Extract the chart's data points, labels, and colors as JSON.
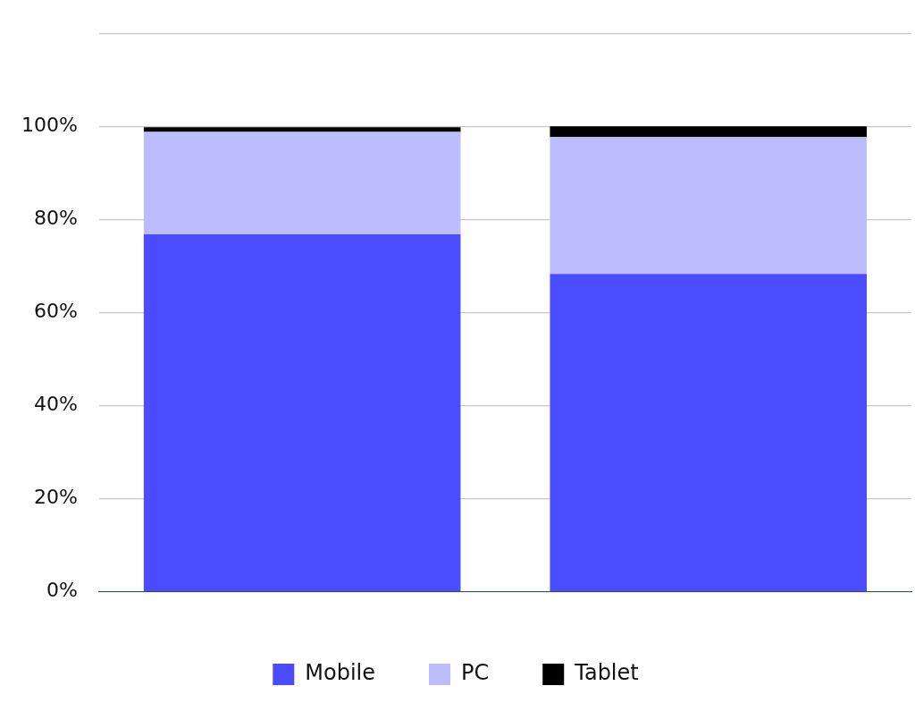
{
  "chart_data": {
    "type": "bar",
    "stacked": true,
    "categories": [
      null,
      null
    ],
    "series": [
      {
        "name": "Mobile",
        "color": "#4b4bff",
        "values": [
          76.8,
          68.3
        ]
      },
      {
        "name": "PC",
        "color": "#bbbdfe",
        "values": [
          22.0,
          29.4
        ]
      },
      {
        "name": "Tablet",
        "color": "#000000",
        "values": [
          1.0,
          2.3
        ]
      }
    ],
    "ylim": [
      0,
      120
    ],
    "yticks": [
      {
        "value": 0,
        "label": "0%"
      },
      {
        "value": 20,
        "label": "20%"
      },
      {
        "value": 40,
        "label": "40%"
      },
      {
        "value": 60,
        "label": "60%"
      },
      {
        "value": 80,
        "label": "80%"
      },
      {
        "value": 100,
        "label": "100%"
      },
      {
        "value": 120,
        "label": null
      }
    ],
    "grid": "y",
    "legend": "bottom"
  }
}
